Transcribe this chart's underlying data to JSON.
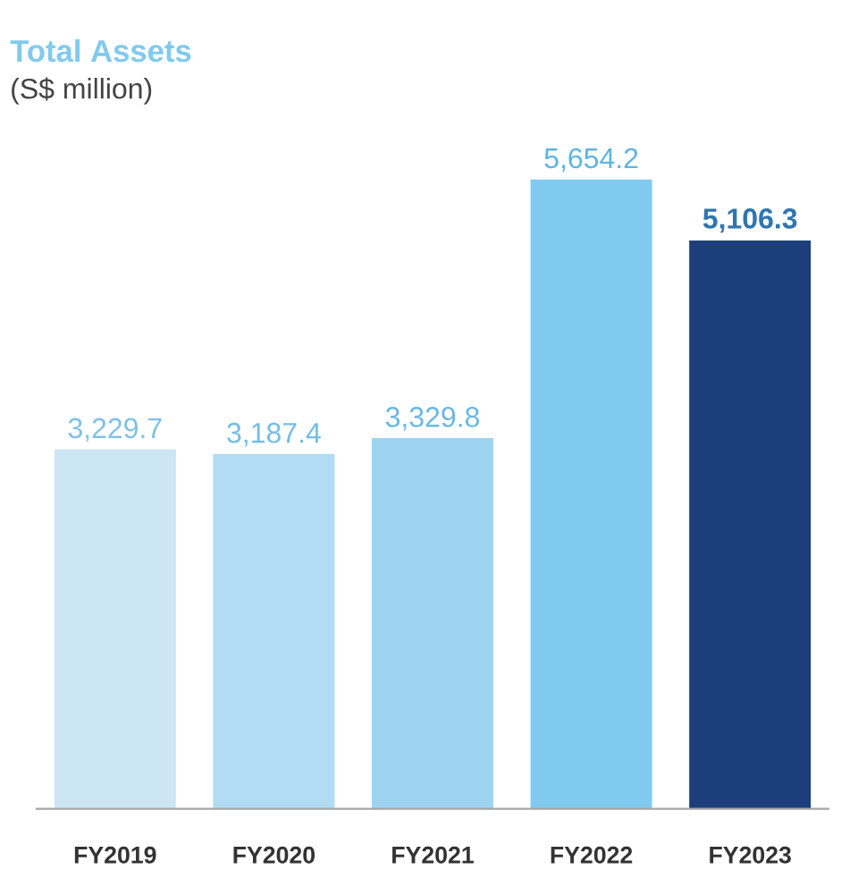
{
  "chart_data": {
    "type": "bar",
    "title": "Total Assets",
    "subtitle": "(S$ million)",
    "categories": [
      "FY2019",
      "FY2020",
      "FY2021",
      "FY2022",
      "FY2023"
    ],
    "values": [
      3229.7,
      3187.4,
      3329.8,
      5654.2,
      5106.3
    ],
    "value_labels": [
      "3,229.7",
      "3,187.4",
      "3,329.8",
      "5,654.2",
      "5,106.3"
    ],
    "colors": [
      "#cde6f6",
      "#b2dcf3",
      "#9dd3f1",
      "#80caef",
      "#1c3f7c"
    ]
  }
}
